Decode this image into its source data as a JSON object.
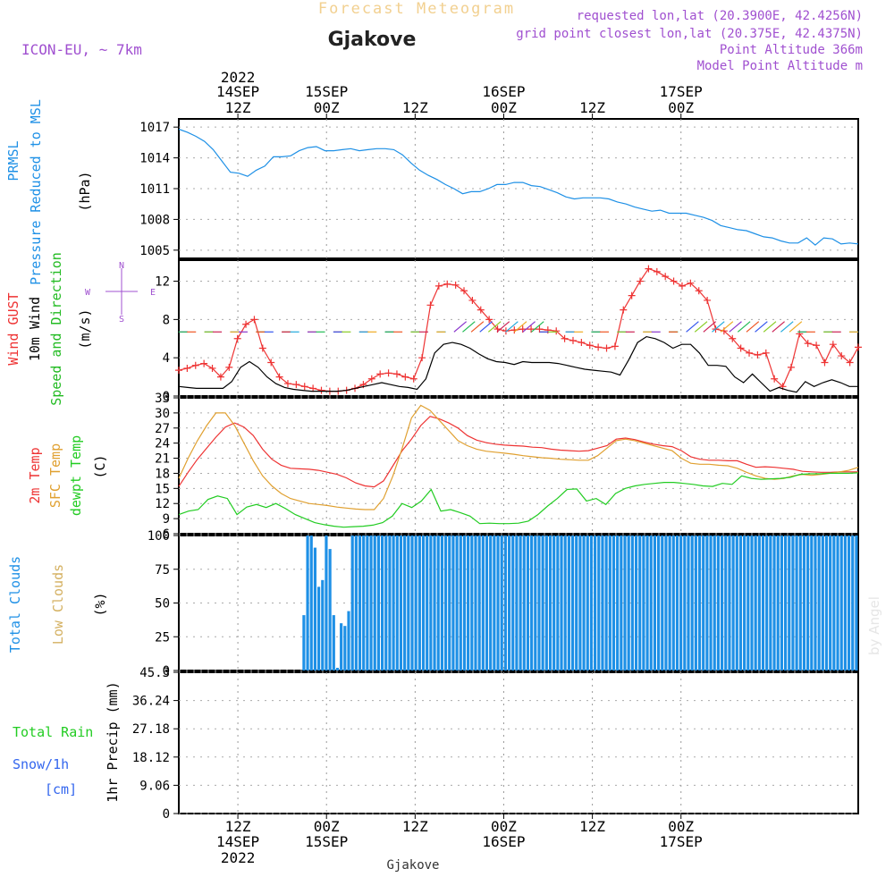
{
  "header": {
    "subtitle": "Forecast Meteogram",
    "location": "Gjakove",
    "model": "ICON-EU, ~ 7km",
    "requested": "requested lon,lat (20.3900E, 42.4256N)",
    "gridpoint": "grid point closest lon,lat (20.375E, 42.4375N)",
    "point_alt": "Point Altitude 366m",
    "model_alt": "Model Point Altitude m",
    "footer": "Gjakove",
    "credit": "by Angel"
  },
  "colors": {
    "pressure": "#1e90e6",
    "gust": "#ee3333",
    "wind": "#000000",
    "dir": "#22bb22",
    "temp": "#ee3333",
    "sfc": "#e0a030",
    "dew": "#22cc22",
    "cloud": "#1e90e6",
    "low": "#d4b060",
    "rain": "#22cc22",
    "snow": "#3366ee",
    "meta": "#a050d0"
  },
  "chart_data": {
    "type": "meteogram",
    "time_axis": {
      "hours": "0 = 14SEP 04Z ... 92 = 17SEP 08Z, hourly",
      "top_ticks": [
        {
          "h": 8,
          "l1": "2022",
          "l2": "14SEP",
          "l3": "12Z"
        },
        {
          "h": 20,
          "l2": "15SEP",
          "l3": "00Z"
        },
        {
          "h": 32,
          "l3": "12Z"
        },
        {
          "h": 44,
          "l2": "16SEP",
          "l3": "00Z"
        },
        {
          "h": 56,
          "l3": "12Z"
        },
        {
          "h": 68,
          "l2": "17SEP",
          "l3": "00Z"
        }
      ],
      "bottom_ticks": [
        {
          "h": 8,
          "l1": "12Z",
          "l2": "14SEP",
          "l3": "2022"
        },
        {
          "h": 20,
          "l1": "00Z",
          "l2": "15SEP"
        },
        {
          "h": 32,
          "l1": "12Z"
        },
        {
          "h": 44,
          "l1": "00Z",
          "l2": "16SEP"
        },
        {
          "h": 56,
          "l1": "12Z"
        },
        {
          "h": 68,
          "l1": "00Z",
          "l2": "17SEP"
        }
      ]
    },
    "pressure": {
      "labels": [
        "PRMSL",
        "Pressure Reduced to MSL"
      ],
      "unit": "(hPa)",
      "ylim": [
        1004.2,
        1017.8
      ],
      "ticks": [
        1017,
        1014,
        1011,
        1008,
        1005
      ],
      "values": [
        1016.8,
        1016.5,
        1016.1,
        1015.6,
        1014.8,
        1013.7,
        1012.6,
        1012.5,
        1012.2,
        1012.8,
        1013.2,
        1014.1,
        1014.1,
        1014.2,
        1014.7,
        1015.0,
        1015.1,
        1014.7,
        1014.7,
        1014.8,
        1014.9,
        1014.7,
        1014.8,
        1014.9,
        1014.9,
        1014.8,
        1014.3,
        1013.5,
        1012.8,
        1012.3,
        1011.9,
        1011.4,
        1011.0,
        1010.5,
        1010.7,
        1010.7,
        1011.0,
        1011.4,
        1011.4,
        1011.6,
        1011.6,
        1011.3,
        1011.2,
        1010.9,
        1010.6,
        1010.2,
        1010.0,
        1010.1,
        1010.1,
        1010.1,
        1010.0,
        1009.7,
        1009.5,
        1009.2,
        1009.0,
        1008.8,
        1008.9,
        1008.6,
        1008.6,
        1008.6,
        1008.4,
        1008.2,
        1007.9,
        1007.4,
        1007.2,
        1007.0,
        1006.9,
        1006.6,
        1006.3,
        1006.2,
        1005.9,
        1005.7,
        1005.7,
        1006.2,
        1005.5,
        1006.2,
        1006.1,
        1005.6,
        1005.7,
        1005.6
      ]
    },
    "wind": {
      "labels": [
        "Wind GUST",
        "10m Wind",
        "Speed and Direction"
      ],
      "unit": "(m/s)",
      "compass": [
        "N",
        "E",
        "S",
        "W"
      ],
      "ylim": [
        0,
        14.2
      ],
      "ticks": [
        0,
        4,
        8,
        12
      ],
      "gust": [
        2.7,
        2.9,
        3.2,
        3.4,
        2.9,
        2.0,
        3.0,
        6.0,
        7.5,
        8.0,
        5.0,
        3.5,
        2.0,
        1.3,
        1.2,
        1.0,
        0.8,
        0.6,
        0.5,
        0.5,
        0.6,
        0.8,
        1.2,
        1.8,
        2.3,
        2.4,
        2.3,
        2.0,
        1.8,
        4.0,
        9.5,
        11.5,
        11.7,
        11.6,
        11.0,
        10.0,
        9.0,
        8.0,
        7.0,
        6.8,
        6.9,
        7.0,
        7.0,
        7.0,
        6.9,
        6.8,
        6.0,
        5.8,
        5.6,
        5.3,
        5.1,
        5.0,
        5.2,
        9.0,
        10.5,
        12.0,
        13.3,
        13.0,
        12.5,
        12.0,
        11.5,
        11.8,
        11.0,
        10.0,
        7.0,
        6.8,
        6.0,
        5.0,
        4.5,
        4.3,
        4.5,
        1.8,
        1.0,
        3.0,
        6.5,
        5.5,
        5.3,
        3.5,
        5.4,
        4.2,
        3.5,
        5.1
      ],
      "speed": [
        1.0,
        0.9,
        0.8,
        0.8,
        0.8,
        0.8,
        1.5,
        3.0,
        3.6,
        3.0,
        2.0,
        1.3,
        0.9,
        0.7,
        0.6,
        0.5,
        0.5,
        0.5,
        0.5,
        0.6,
        0.8,
        1.0,
        1.2,
        1.4,
        1.2,
        1.0,
        0.9,
        0.7,
        1.8,
        4.5,
        5.4,
        5.6,
        5.4,
        5.0,
        4.4,
        3.9,
        3.6,
        3.5,
        3.3,
        3.6,
        3.5,
        3.5,
        3.5,
        3.4,
        3.2,
        3.0,
        2.8,
        2.7,
        2.6,
        2.5,
        2.2,
        3.8,
        5.6,
        6.2,
        6.0,
        5.6,
        5.0,
        5.4,
        5.4,
        4.5,
        3.2,
        3.2,
        3.1,
        2.0,
        1.4,
        2.3,
        1.4,
        0.5,
        0.9,
        0.6,
        0.4,
        1.5,
        1.0,
        1.4,
        1.7,
        1.4,
        1.0,
        1.0
      ]
    },
    "temperature": {
      "labels": [
        "2m Temp",
        "SFC Temp",
        "dewpt Temp"
      ],
      "unit": "(C)",
      "ylim": [
        6,
        33
      ],
      "ticks": [
        6,
        9,
        12,
        15,
        18,
        21,
        24,
        27,
        30,
        33
      ],
      "t2m": [
        15.4,
        18.2,
        20.8,
        23.0,
        25.2,
        27.2,
        28.0,
        27.2,
        25.5,
        22.8,
        20.8,
        19.6,
        19.0,
        18.9,
        18.8,
        18.6,
        18.2,
        17.8,
        17.1,
        16.1,
        15.5,
        15.3,
        16.5,
        19.5,
        22.5,
        24.8,
        27.5,
        29.3,
        28.8,
        28.0,
        27.0,
        25.5,
        24.6,
        24.1,
        23.8,
        23.6,
        23.5,
        23.4,
        23.2,
        23.1,
        22.8,
        22.6,
        22.5,
        22.4,
        22.5,
        23.0,
        23.5,
        24.8,
        25.0,
        24.7,
        24.2,
        23.8,
        23.5,
        23.3,
        22.5,
        21.3,
        20.8,
        20.6,
        20.6,
        20.5,
        20.5,
        19.8,
        19.2,
        19.3,
        19.2,
        19.0,
        18.8,
        18.4,
        18.3,
        18.2,
        18.2,
        18.3,
        18.3,
        18.3
      ],
      "sfc": [
        17.0,
        21.0,
        24.5,
        27.5,
        30.0,
        30.0,
        27.5,
        24.0,
        20.5,
        17.5,
        15.5,
        14.0,
        13.0,
        12.5,
        12.0,
        11.8,
        11.6,
        11.3,
        11.1,
        10.9,
        10.8,
        10.8,
        13.0,
        17.5,
        23.0,
        29.0,
        31.5,
        30.5,
        28.5,
        26.5,
        24.5,
        23.5,
        22.8,
        22.4,
        22.2,
        22.0,
        21.8,
        21.5,
        21.3,
        21.1,
        21.0,
        20.8,
        20.7,
        20.6,
        20.6,
        21.5,
        23.0,
        24.5,
        24.8,
        24.5,
        24.0,
        23.5,
        23.0,
        22.5,
        21.0,
        20.0,
        19.8,
        19.8,
        19.6,
        19.5,
        19.0,
        18.2,
        17.5,
        17.0,
        16.8,
        17.0,
        17.5,
        17.8,
        17.6,
        17.8,
        18.0,
        18.3,
        18.6,
        19.2
      ],
      "dew": [
        9.8,
        10.5,
        10.8,
        12.8,
        13.5,
        13.0,
        9.8,
        11.3,
        11.8,
        11.2,
        12.0,
        11.0,
        9.8,
        9.0,
        8.2,
        7.8,
        7.5,
        7.3,
        7.4,
        7.5,
        7.7,
        8.2,
        9.5,
        12.0,
        11.2,
        12.5,
        14.8,
        10.5,
        10.8,
        10.2,
        9.5,
        8.0,
        8.1,
        8.0,
        8.0,
        8.1,
        8.5,
        9.8,
        11.5,
        13.0,
        14.8,
        14.9,
        12.5,
        13.0,
        11.8,
        14.0,
        15.0,
        15.5,
        15.8,
        16.0,
        16.2,
        16.2,
        16.0,
        15.8,
        15.5,
        15.4,
        16.0,
        15.8,
        17.5,
        17.0,
        16.8,
        16.9,
        17.0,
        17.2,
        17.8,
        17.9,
        17.9,
        18.0,
        18.0,
        18.0,
        18.1
      ]
    },
    "clouds": {
      "labels": [
        "Total Clouds",
        "Low Clouds"
      ],
      "unit": "(%)",
      "ylim": [
        0,
        100
      ],
      "ticks": [
        0,
        25,
        50,
        75,
        100
      ],
      "total": [
        0,
        0,
        0,
        0,
        0,
        0,
        0,
        0,
        0,
        0,
        0,
        0,
        0,
        0,
        0,
        0,
        0,
        0,
        0,
        0,
        0,
        0,
        0,
        0,
        0,
        0,
        0,
        0,
        0,
        0,
        0,
        0,
        0,
        41,
        100,
        100,
        91,
        62,
        67,
        100,
        90,
        41,
        2,
        35,
        33,
        44,
        100,
        100,
        100,
        100,
        100,
        100,
        100,
        100,
        100,
        100,
        100,
        100,
        100,
        100,
        100,
        100,
        100,
        100,
        100,
        100,
        100,
        100,
        100,
        100,
        100,
        100,
        100,
        100,
        100,
        100,
        100,
        100,
        100,
        100,
        100,
        100,
        100,
        100,
        100,
        100,
        100,
        100,
        100,
        100,
        100,
        100,
        100,
        100,
        100,
        100,
        100,
        100,
        100,
        100,
        100,
        100,
        100,
        100,
        100,
        100,
        100,
        100,
        100,
        100,
        100,
        100,
        100,
        100,
        100,
        100,
        100,
        100,
        100,
        100,
        100,
        100,
        100,
        100,
        100,
        100,
        100,
        100,
        100,
        100,
        100,
        100,
        100,
        100,
        100,
        100,
        100,
        100,
        100,
        100,
        100,
        100,
        100,
        100,
        100,
        100,
        100,
        100,
        100,
        100,
        100,
        100,
        100,
        100,
        100,
        100,
        100,
        100,
        100,
        100,
        100,
        100,
        100,
        100,
        100,
        100,
        100,
        100,
        100,
        100,
        100,
        100,
        100,
        100,
        100,
        100,
        100,
        100,
        100,
        100,
        100,
        100
      ],
      "low": [
        0,
        0,
        0,
        0,
        0,
        0,
        0,
        0,
        0,
        0,
        0,
        0,
        0,
        0,
        0,
        0,
        0,
        0,
        0,
        0,
        0,
        0,
        0,
        0,
        0,
        0,
        0,
        0,
        0,
        0,
        0,
        0,
        0,
        0,
        0,
        0,
        0,
        0,
        0,
        0,
        0,
        0,
        0,
        0,
        0,
        0,
        0,
        0,
        0,
        0,
        0,
        0,
        0,
        0,
        0,
        0,
        0,
        0,
        0,
        0,
        0,
        0,
        0,
        0,
        0,
        0,
        0,
        0,
        0,
        0,
        0,
        0,
        0,
        0,
        0,
        0,
        0,
        0,
        0,
        0,
        0,
        0,
        0,
        0,
        0,
        0,
        0,
        0,
        0,
        0,
        0,
        0,
        0,
        0,
        0,
        0,
        0,
        0,
        0,
        0,
        0,
        0,
        0,
        0,
        0,
        0,
        0,
        0,
        0,
        0,
        0,
        0,
        0,
        0,
        0,
        0,
        0,
        0,
        0,
        0,
        0,
        0,
        0,
        0,
        0,
        0,
        0,
        0,
        0,
        0,
        0,
        0,
        0,
        0,
        0,
        0,
        0,
        0,
        0,
        0,
        0,
        0,
        0,
        0,
        0,
        0,
        0,
        0,
        0,
        0,
        0,
        0,
        0,
        0,
        0,
        0,
        0,
        0,
        0,
        0,
        0,
        0,
        0,
        0,
        0,
        0,
        0,
        0,
        0,
        0,
        0,
        0,
        0,
        0,
        0,
        0,
        0,
        0,
        0,
        0,
        0,
        0,
        0,
        0,
        0,
        0,
        0,
        0,
        0,
        0,
        0,
        0,
        0,
        0,
        0,
        0,
        0,
        0,
        0,
        0,
        0,
        0,
        0,
        0,
        0,
        0,
        0,
        0,
        0,
        0,
        0,
        0,
        0,
        0,
        0,
        0
      ]
    },
    "precip": {
      "labels": [
        "Total  Rain",
        "Snow/1h",
        "[cm]"
      ],
      "unit": "1hr Precip (mm)",
      "ylim": [
        0,
        45.3
      ],
      "ticks": [
        0,
        9.06,
        18.12,
        27.18,
        36.24,
        45.3
      ],
      "values": [
        0,
        0,
        0,
        0,
        0,
        0,
        0,
        0,
        0,
        0,
        0,
        0,
        0,
        0,
        0,
        0,
        0,
        0,
        0,
        0,
        0,
        0,
        0,
        0,
        0,
        0,
        0,
        0,
        0,
        0,
        0,
        0,
        0,
        0,
        0,
        0,
        0,
        0,
        0,
        0,
        0,
        0,
        0,
        0,
        0,
        0,
        0,
        0,
        0,
        0,
        0,
        0,
        0,
        0,
        0,
        0,
        0,
        0,
        0,
        0,
        0,
        0,
        0,
        0,
        0,
        0,
        0,
        0,
        0,
        0,
        0,
        0,
        0,
        0,
        0,
        0,
        0,
        0,
        0,
        0,
        0,
        0,
        0,
        0,
        0,
        0,
        0,
        0,
        0,
        0,
        0,
        0,
        0,
        0,
        0,
        0,
        0,
        0,
        0,
        0,
        0,
        0,
        0,
        0,
        0,
        0,
        0,
        0,
        0,
        0,
        0,
        0,
        0,
        0,
        0,
        0,
        0,
        0,
        0,
        0,
        0,
        0,
        0,
        0,
        0,
        0,
        0,
        0,
        0,
        0,
        0,
        0,
        0,
        0,
        0,
        0,
        0,
        0,
        0,
        0,
        0,
        0,
        0,
        0,
        0,
        0,
        0,
        0,
        0,
        0,
        0,
        0,
        0,
        0,
        0,
        0,
        0,
        0,
        0,
        0,
        0,
        0,
        0,
        0,
        0,
        0,
        0,
        0,
        0,
        0,
        0,
        0,
        0,
        0,
        0,
        0,
        0,
        0,
        0,
        0,
        0,
        0,
        0,
        0,
        0,
        0,
        0,
        0,
        0,
        0,
        0,
        0,
        0,
        0,
        0,
        0,
        0,
        0,
        0,
        0,
        0,
        0,
        0,
        0,
        0,
        0,
        0,
        0,
        0,
        0,
        0,
        0,
        0,
        0,
        0,
        0,
        0,
        0,
        0,
        0,
        0,
        0,
        0,
        0,
        0,
        0,
        0
      ]
    }
  }
}
